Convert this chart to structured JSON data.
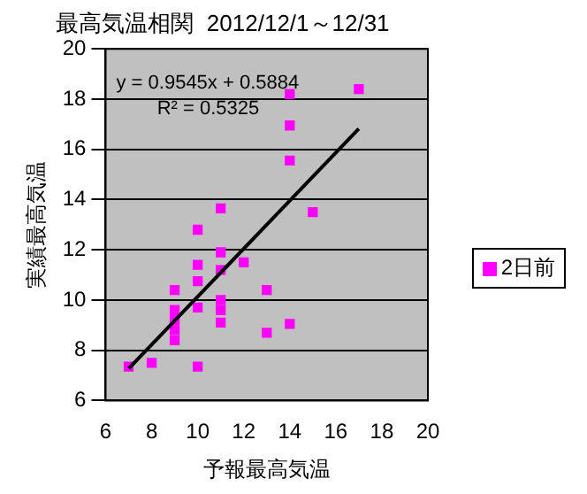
{
  "chart_data": {
    "type": "scatter",
    "title": "最高気温相関  2012/12/1～12/31",
    "xlabel": "予報最高気温",
    "ylabel": "実績最高気温",
    "xlim": [
      6,
      20
    ],
    "xticks": [
      6,
      8,
      10,
      12,
      14,
      16,
      18,
      20
    ],
    "ylim": [
      6,
      20
    ],
    "yticks": [
      6,
      8,
      10,
      12,
      14,
      16,
      18,
      20
    ],
    "grid": "y",
    "legend": "right",
    "marker": "square",
    "annotations": [
      "y = 0.9545x + 0.5884",
      "R² = 0.5325"
    ],
    "series": [
      {
        "name": "2日前",
        "color": "#ff00ff",
        "x": [
          7,
          8,
          9,
          9,
          9,
          9,
          9,
          10,
          10,
          10,
          10,
          10,
          11,
          11,
          11,
          11,
          11,
          11,
          12,
          13,
          13,
          14,
          14,
          14,
          14,
          15,
          17
        ],
        "values": [
          7.35,
          7.5,
          10.4,
          9.6,
          9.2,
          8.8,
          8.4,
          12.8,
          11.4,
          10.75,
          9.7,
          7.35,
          13.65,
          11.9,
          11.2,
          10.0,
          9.6,
          9.1,
          11.5,
          10.4,
          8.7,
          9.05,
          18.2,
          16.95,
          15.55,
          13.5,
          18.4
        ]
      },
      {
        "type": "line",
        "color": "#000000",
        "marker": "none",
        "x": [
          7,
          17
        ],
        "values": [
          7.27,
          16.82
        ]
      }
    ]
  }
}
